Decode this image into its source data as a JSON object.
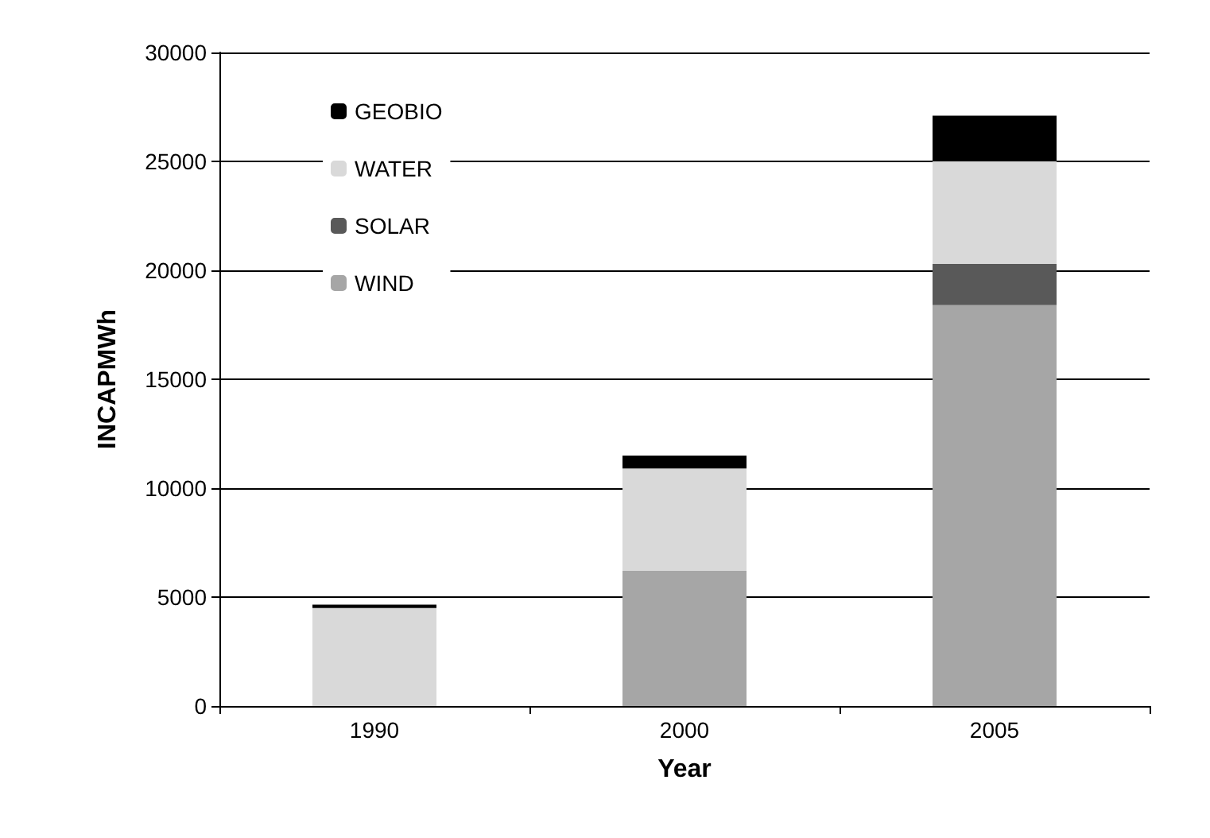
{
  "chart_data": {
    "type": "bar",
    "stacked": true,
    "xlabel": "Year",
    "ylabel": "INCAPMWh",
    "categories": [
      "1990",
      "2000",
      "2005"
    ],
    "series": [
      {
        "name": "WIND",
        "color": "#a6a6a6",
        "values": [
          0,
          6200,
          18400
        ]
      },
      {
        "name": "SOLAR",
        "color": "#595959",
        "values": [
          0,
          0,
          1900
        ]
      },
      {
        "name": "WATER",
        "color": "#d9d9d9",
        "values": [
          4500,
          4700,
          4700
        ]
      },
      {
        "name": "GEOBIO",
        "color": "#000000",
        "values": [
          150,
          600,
          2100
        ]
      }
    ],
    "ylim": [
      0,
      30000
    ],
    "yticks": [
      0,
      5000,
      10000,
      15000,
      20000,
      25000,
      30000
    ],
    "grid": "y",
    "legend": "top left"
  }
}
